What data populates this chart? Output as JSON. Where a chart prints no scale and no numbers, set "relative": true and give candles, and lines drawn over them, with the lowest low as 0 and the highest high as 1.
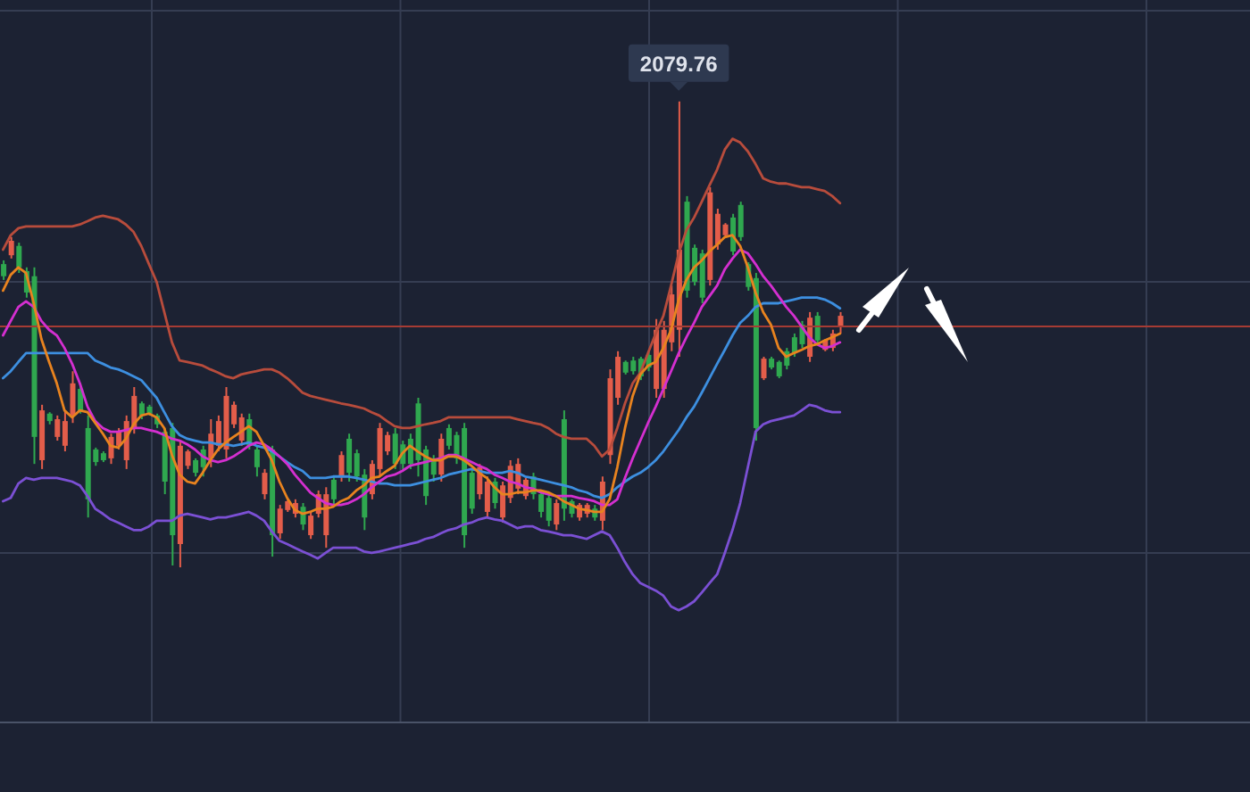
{
  "chart_data": {
    "type": "candlestick",
    "relative": true,
    "grid": true,
    "categories": [
      null,
      null,
      null,
      null,
      null,
      null,
      null,
      null,
      null,
      null,
      null,
      null,
      null,
      null,
      null,
      null,
      null,
      null,
      null,
      null,
      null,
      null,
      null,
      null,
      null,
      null,
      null,
      null,
      null,
      null,
      null,
      null,
      null,
      null,
      null,
      null,
      null,
      null,
      null,
      null,
      null,
      null,
      null,
      null,
      null,
      null,
      null,
      null,
      null,
      null,
      null,
      null,
      null,
      null,
      null,
      null,
      null,
      null,
      null,
      null,
      null,
      null,
      null,
      null,
      null,
      null,
      null,
      null,
      null,
      null,
      null,
      null,
      null,
      null,
      null,
      null,
      null,
      null,
      null,
      null,
      null,
      null,
      null,
      null,
      null,
      null,
      null,
      null,
      null,
      null,
      null,
      null,
      null,
      null,
      null,
      null,
      null,
      null,
      null,
      null,
      null,
      null,
      null,
      null,
      null,
      null,
      null,
      null,
      null,
      null
    ],
    "ohlc": [
      [
        0.625,
        0.659,
        0.617,
        0.651
      ],
      [
        0.701,
        0.709,
        0.663,
        0.67
      ],
      [
        0.644,
        0.697,
        0.632,
        0.69
      ],
      [
        0.59,
        0.644,
        0.579,
        0.636
      ],
      [
        0.28,
        0.644,
        0.222,
        0.625
      ],
      [
        0.337,
        0.349,
        0.211,
        0.23
      ],
      [
        0.314,
        0.333,
        0.307,
        0.33
      ],
      [
        0.318,
        0.326,
        0.272,
        0.28
      ],
      [
        0.314,
        0.337,
        0.249,
        0.261
      ],
      [
        0.395,
        0.421,
        0.31,
        0.326
      ],
      [
        0.337,
        0.395,
        0.33,
        0.383
      ],
      [
        0.146,
        0.326,
        0.107,
        0.299
      ],
      [
        0.226,
        0.257,
        0.218,
        0.253
      ],
      [
        0.23,
        0.249,
        0.226,
        0.245
      ],
      [
        0.28,
        0.287,
        0.222,
        0.234
      ],
      [
        0.291,
        0.299,
        0.253,
        0.261
      ],
      [
        0.314,
        0.326,
        0.211,
        0.23
      ],
      [
        0.368,
        0.387,
        0.287,
        0.299
      ],
      [
        0.326,
        0.356,
        0.318,
        0.352
      ],
      [
        0.33,
        0.349,
        0.326,
        0.345
      ],
      [
        0.307,
        0.33,
        0.299,
        0.326
      ],
      [
        0.184,
        0.299,
        0.157,
        0.291
      ],
      [
        0.069,
        0.31,
        0.004,
        0.299
      ],
      [
        0.261,
        0.272,
        0,
        0.05
      ],
      [
        0.249,
        0.253,
        0.211,
        0.218
      ],
      [
        0.203,
        0.234,
        0.195,
        0.23
      ],
      [
        0.215,
        0.261,
        0.195,
        0.253
      ],
      [
        0.287,
        0.318,
        0.215,
        0.234
      ],
      [
        0.314,
        0.326,
        0.249,
        0.261
      ],
      [
        0.368,
        0.387,
        0.234,
        0.253
      ],
      [
        0.349,
        0.356,
        0.299,
        0.307
      ],
      [
        0.322,
        0.33,
        0.261,
        0.272
      ],
      [
        0.261,
        0.33,
        0.253,
        0.318
      ],
      [
        0.215,
        0.261,
        0.195,
        0.253
      ],
      [
        0.203,
        0.211,
        0.146,
        0.157
      ],
      [
        0.069,
        0.261,
        0.023,
        0.253
      ],
      [
        0.126,
        0.134,
        0.061,
        0.073
      ],
      [
        0.142,
        0.146,
        0.119,
        0.123
      ],
      [
        0.138,
        0.146,
        0.107,
        0.115
      ],
      [
        0.092,
        0.138,
        0.08,
        0.13
      ],
      [
        0.111,
        0.119,
        0.061,
        0.069
      ],
      [
        0.157,
        0.165,
        0.107,
        0.115
      ],
      [
        0.157,
        0.172,
        0.042,
        0.069
      ],
      [
        0.146,
        0.195,
        0.134,
        0.188
      ],
      [
        0.241,
        0.249,
        0.184,
        0.195
      ],
      [
        0.203,
        0.287,
        0.184,
        0.276
      ],
      [
        0.195,
        0.253,
        0.184,
        0.245
      ],
      [
        0.107,
        0.211,
        0.08,
        0.199
      ],
      [
        0.222,
        0.23,
        0.146,
        0.157
      ],
      [
        0.299,
        0.31,
        0.195,
        0.211
      ],
      [
        0.284,
        0.291,
        0.241,
        0.249
      ],
      [
        0.222,
        0.299,
        0.211,
        0.287
      ],
      [
        0.222,
        0.272,
        0.211,
        0.264
      ],
      [
        0.222,
        0.287,
        0.211,
        0.276
      ],
      [
        0.23,
        0.364,
        0.195,
        0.352
      ],
      [
        0.153,
        0.261,
        0.134,
        0.253
      ],
      [
        0.199,
        0.241,
        0.184,
        0.234
      ],
      [
        0.276,
        0.287,
        0.184,
        0.199
      ],
      [
        0.261,
        0.307,
        0.253,
        0.299
      ],
      [
        0.234,
        0.291,
        0.222,
        0.284
      ],
      [
        0.069,
        0.31,
        0.042,
        0.299
      ],
      [
        0.126,
        0.211,
        0.115,
        0.203
      ],
      [
        0.215,
        0.222,
        0.146,
        0.157
      ],
      [
        0.184,
        0.195,
        0.107,
        0.119
      ],
      [
        0.138,
        0.192,
        0.126,
        0.184
      ],
      [
        0.176,
        0.184,
        0.096,
        0.107
      ],
      [
        0.218,
        0.23,
        0.138,
        0.149
      ],
      [
        0.222,
        0.234,
        0.157,
        0.169
      ],
      [
        0.188,
        0.192,
        0.146,
        0.153
      ],
      [
        0.157,
        0.203,
        0.146,
        0.195
      ],
      [
        0.119,
        0.165,
        0.107,
        0.157
      ],
      [
        0.1,
        0.157,
        0.088,
        0.149
      ],
      [
        0.138,
        0.146,
        0.08,
        0.092
      ],
      [
        0.126,
        0.337,
        0.1,
        0.318
      ],
      [
        0.115,
        0.146,
        0.107,
        0.142
      ],
      [
        0.134,
        0.138,
        0.1,
        0.107
      ],
      [
        0.134,
        0.138,
        0.107,
        0.115
      ],
      [
        0.107,
        0.134,
        0.1,
        0.126
      ],
      [
        0.184,
        0.195,
        0.08,
        0.1
      ],
      [
        0.406,
        0.425,
        0.222,
        0.241
      ],
      [
        0.452,
        0.464,
        0.349,
        0.364
      ],
      [
        0.418,
        0.444,
        0.414,
        0.441
      ],
      [
        0.421,
        0.452,
        0.414,
        0.444
      ],
      [
        0.41,
        0.452,
        0.402,
        0.448
      ],
      [
        0.429,
        0.464,
        0.421,
        0.456
      ],
      [
        0.51,
        0.533,
        0.364,
        0.383
      ],
      [
        0.51,
        0.529,
        0.364,
        0.383
      ],
      [
        0.586,
        0.605,
        0.464,
        0.483
      ],
      [
        0.682,
        1,
        0.452,
        0.51
      ],
      [
        0.594,
        0.797,
        0.579,
        0.785
      ],
      [
        0.613,
        0.693,
        0.605,
        0.686
      ],
      [
        0.579,
        0.682,
        0.567,
        0.674
      ],
      [
        0.805,
        0.816,
        0.605,
        0.617
      ],
      [
        0.759,
        0.77,
        0.682,
        0.693
      ],
      [
        0.736,
        0.739,
        0.709,
        0.713
      ],
      [
        0.678,
        0.759,
        0.67,
        0.751
      ],
      [
        0.709,
        0.785,
        0.701,
        0.778
      ],
      [
        0.602,
        0.655,
        0.594,
        0.651
      ],
      [
        0.299,
        0.632,
        0.272,
        0.621
      ],
      [
        0.448,
        0.452,
        0.402,
        0.406
      ],
      [
        0.429,
        0.452,
        0.425,
        0.448
      ],
      [
        0.41,
        0.444,
        0.406,
        0.441
      ],
      [
        0.433,
        0.471,
        0.425,
        0.464
      ],
      [
        0.46,
        0.502,
        0.452,
        0.494
      ],
      [
        0.479,
        0.529,
        0.471,
        0.521
      ],
      [
        0.536,
        0.548,
        0.441,
        0.452
      ],
      [
        0.487,
        0.548,
        0.479,
        0.54
      ],
      [
        0.487,
        0.49,
        0.464,
        0.467
      ],
      [
        0.502,
        0.51,
        0.464,
        0.471
      ],
      [
        0.54,
        0.548,
        0.502,
        0.517
      ]
    ],
    "colors": [
      "#2fa84f",
      "#e35d4a",
      "#2fa84f",
      "#2fa84f",
      "#2fa84f",
      "#e35d4a",
      "#2fa84f",
      "#e35d4a",
      "#e35d4a",
      "#e35d4a",
      "#2fa84f",
      "#2fa84f",
      "#2fa84f",
      "#2fa84f",
      "#e35d4a",
      "#e35d4a",
      "#e35d4a",
      "#e35d4a",
      "#2fa84f",
      "#2fa84f",
      "#2fa84f",
      "#2fa84f",
      "#2fa84f",
      "#e35d4a",
      "#e35d4a",
      "#2fa84f",
      "#2fa84f",
      "#e35d4a",
      "#e35d4a",
      "#e35d4a",
      "#e35d4a",
      "#e35d4a",
      "#2fa84f",
      "#2fa84f",
      "#e35d4a",
      "#2fa84f",
      "#e35d4a",
      "#e35d4a",
      "#e35d4a",
      "#2fa84f",
      "#e35d4a",
      "#e35d4a",
      "#e35d4a",
      "#2fa84f",
      "#e35d4a",
      "#2fa84f",
      "#2fa84f",
      "#2fa84f",
      "#e35d4a",
      "#e35d4a",
      "#e35d4a",
      "#2fa84f",
      "#2fa84f",
      "#2fa84f",
      "#2fa84f",
      "#2fa84f",
      "#2fa84f",
      "#e35d4a",
      "#2fa84f",
      "#2fa84f",
      "#2fa84f",
      "#2fa84f",
      "#e35d4a",
      "#e35d4a",
      "#2fa84f",
      "#e35d4a",
      "#e35d4a",
      "#e35d4a",
      "#e35d4a",
      "#2fa84f",
      "#2fa84f",
      "#2fa84f",
      "#e35d4a",
      "#2fa84f",
      "#2fa84f",
      "#e35d4a",
      "#e35d4a",
      "#2fa84f",
      "#e35d4a",
      "#e35d4a",
      "#e35d4a",
      "#2fa84f",
      "#2fa84f",
      "#2fa84f",
      "#2fa84f",
      "#e35d4a",
      "#e35d4a",
      "#e35d4a",
      "#e35d4a",
      "#2fa84f",
      "#2fa84f",
      "#2fa84f",
      "#e35d4a",
      "#e35d4a",
      "#e35d4a",
      "#2fa84f",
      "#2fa84f",
      "#2fa84f",
      "#2fa84f",
      "#e35d4a",
      "#2fa84f",
      "#2fa84f",
      "#2fa84f",
      "#2fa84f",
      "#2fa84f",
      "#e35d4a",
      "#2fa84f",
      "#e35d4a",
      "#e35d4a",
      "#e35d4a"
    ],
    "series": [
      {
        "type": "line",
        "color": "#b84c3c",
        "values": [
          0.682,
          0.713,
          0.728,
          0.732,
          0.732,
          0.732,
          0.732,
          0.732,
          0.732,
          0.732,
          0.736,
          0.743,
          0.751,
          0.755,
          0.751,
          0.747,
          0.736,
          0.72,
          0.69,
          0.651,
          0.613,
          0.548,
          0.483,
          0.444,
          0.441,
          0.437,
          0.433,
          0.425,
          0.418,
          0.41,
          0.406,
          0.414,
          0.418,
          0.421,
          0.425,
          0.425,
          0.418,
          0.406,
          0.391,
          0.375,
          0.368,
          0.364,
          0.36,
          0.356,
          0.352,
          0.349,
          0.345,
          0.341,
          0.333,
          0.326,
          0.314,
          0.303,
          0.299,
          0.299,
          0.303,
          0.307,
          0.31,
          0.314,
          0.322,
          0.322,
          0.322,
          0.322,
          0.322,
          0.322,
          0.322,
          0.322,
          0.322,
          0.318,
          0.314,
          0.31,
          0.307,
          0.299,
          0.287,
          0.28,
          0.276,
          0.276,
          0.276,
          0.261,
          0.238,
          0.253,
          0.299,
          0.352,
          0.395,
          0.418,
          0.46,
          0.502,
          0.54,
          0.605,
          0.674,
          0.724,
          0.751,
          0.785,
          0.82,
          0.854,
          0.897,
          0.92,
          0.912,
          0.893,
          0.866,
          0.835,
          0.828,
          0.824,
          0.824,
          0.82,
          0.816,
          0.816,
          0.812,
          0.808,
          0.797,
          0.782
        ]
      },
      {
        "type": "line",
        "color": "#3d8fe0",
        "values": [
          0.406,
          0.421,
          0.441,
          0.46,
          0.46,
          0.46,
          0.46,
          0.46,
          0.46,
          0.46,
          0.46,
          0.46,
          0.444,
          0.437,
          0.429,
          0.425,
          0.418,
          0.41,
          0.402,
          0.383,
          0.364,
          0.333,
          0.303,
          0.284,
          0.276,
          0.272,
          0.268,
          0.268,
          0.264,
          0.264,
          0.261,
          0.264,
          0.268,
          0.261,
          0.257,
          0.249,
          0.238,
          0.226,
          0.215,
          0.207,
          0.192,
          0.192,
          0.192,
          0.195,
          0.195,
          0.195,
          0.192,
          0.188,
          0.184,
          0.18,
          0.18,
          0.176,
          0.176,
          0.176,
          0.18,
          0.184,
          0.188,
          0.192,
          0.199,
          0.203,
          0.207,
          0.211,
          0.207,
          0.203,
          0.203,
          0.203,
          0.207,
          0.203,
          0.195,
          0.192,
          0.188,
          0.184,
          0.18,
          0.176,
          0.172,
          0.165,
          0.161,
          0.153,
          0.149,
          0.157,
          0.172,
          0.184,
          0.195,
          0.203,
          0.215,
          0.23,
          0.249,
          0.272,
          0.295,
          0.322,
          0.345,
          0.375,
          0.406,
          0.437,
          0.467,
          0.498,
          0.525,
          0.54,
          0.559,
          0.567,
          0.567,
          0.567,
          0.571,
          0.575,
          0.579,
          0.579,
          0.579,
          0.575,
          0.567,
          0.556
        ]
      },
      {
        "type": "line",
        "color": "#7b50d4",
        "values": [
          0.142,
          0.149,
          0.18,
          0.192,
          0.188,
          0.192,
          0.192,
          0.192,
          0.188,
          0.184,
          0.176,
          0.153,
          0.126,
          0.115,
          0.103,
          0.096,
          0.088,
          0.08,
          0.08,
          0.088,
          0.1,
          0.1,
          0.1,
          0.111,
          0.115,
          0.111,
          0.107,
          0.103,
          0.107,
          0.107,
          0.111,
          0.115,
          0.119,
          0.111,
          0.1,
          0.077,
          0.057,
          0.05,
          0.042,
          0.034,
          0.027,
          0.019,
          0.031,
          0.042,
          0.042,
          0.042,
          0.042,
          0.034,
          0.031,
          0.034,
          0.038,
          0.042,
          0.046,
          0.05,
          0.054,
          0.061,
          0.065,
          0.073,
          0.08,
          0.084,
          0.092,
          0.096,
          0.103,
          0.107,
          0.103,
          0.1,
          0.092,
          0.084,
          0.088,
          0.088,
          0.08,
          0.077,
          0.073,
          0.069,
          0.069,
          0.065,
          0.061,
          0.069,
          0.077,
          0.069,
          0.042,
          0.011,
          -0.015,
          -0.034,
          -0.042,
          -0.05,
          -0.061,
          -0.084,
          -0.092,
          -0.084,
          -0.073,
          -0.054,
          -0.034,
          -0.015,
          0.031,
          0.08,
          0.138,
          0.215,
          0.291,
          0.307,
          0.314,
          0.318,
          0.322,
          0.326,
          0.337,
          0.349,
          0.345,
          0.337,
          0.333,
          0.333
        ]
      },
      {
        "type": "line",
        "color": "#d42fd0",
        "values": [
          0.498,
          0.529,
          0.559,
          0.571,
          0.559,
          0.529,
          0.51,
          0.498,
          0.471,
          0.437,
          0.395,
          0.345,
          0.314,
          0.299,
          0.291,
          0.291,
          0.295,
          0.299,
          0.299,
          0.295,
          0.291,
          0.284,
          0.276,
          0.272,
          0.264,
          0.253,
          0.238,
          0.23,
          0.226,
          0.23,
          0.238,
          0.249,
          0.261,
          0.268,
          0.264,
          0.253,
          0.238,
          0.222,
          0.199,
          0.18,
          0.161,
          0.149,
          0.138,
          0.134,
          0.134,
          0.138,
          0.146,
          0.157,
          0.172,
          0.184,
          0.195,
          0.199,
          0.207,
          0.218,
          0.222,
          0.226,
          0.23,
          0.234,
          0.241,
          0.241,
          0.234,
          0.226,
          0.218,
          0.211,
          0.199,
          0.192,
          0.184,
          0.18,
          0.172,
          0.169,
          0.161,
          0.157,
          0.153,
          0.153,
          0.153,
          0.149,
          0.146,
          0.142,
          0.134,
          0.134,
          0.146,
          0.192,
          0.234,
          0.272,
          0.31,
          0.345,
          0.383,
          0.421,
          0.46,
          0.494,
          0.525,
          0.559,
          0.582,
          0.605,
          0.64,
          0.663,
          0.682,
          0.674,
          0.651,
          0.625,
          0.605,
          0.582,
          0.559,
          0.54,
          0.517,
          0.494,
          0.479,
          0.471,
          0.475,
          0.483
        ]
      },
      {
        "type": "line",
        "color": "#e8831f",
        "values": [
          0.594,
          0.628,
          0.644,
          0.632,
          0.567,
          0.49,
          0.441,
          0.395,
          0.337,
          0.322,
          0.337,
          0.333,
          0.31,
          0.287,
          0.261,
          0.257,
          0.276,
          0.307,
          0.326,
          0.33,
          0.322,
          0.299,
          0.241,
          0.199,
          0.184,
          0.18,
          0.203,
          0.23,
          0.253,
          0.268,
          0.28,
          0.291,
          0.303,
          0.291,
          0.261,
          0.23,
          0.184,
          0.149,
          0.123,
          0.115,
          0.119,
          0.126,
          0.126,
          0.13,
          0.142,
          0.149,
          0.165,
          0.176,
          0.192,
          0.195,
          0.207,
          0.218,
          0.245,
          0.261,
          0.249,
          0.238,
          0.23,
          0.23,
          0.238,
          0.238,
          0.23,
          0.218,
          0.203,
          0.192,
          0.172,
          0.157,
          0.157,
          0.161,
          0.161,
          0.165,
          0.165,
          0.161,
          0.153,
          0.142,
          0.134,
          0.126,
          0.123,
          0.119,
          0.119,
          0.146,
          0.215,
          0.299,
          0.368,
          0.414,
          0.433,
          0.441,
          0.471,
          0.51,
          0.575,
          0.617,
          0.644,
          0.659,
          0.678,
          0.693,
          0.709,
          0.713,
          0.69,
          0.644,
          0.59,
          0.548,
          0.521,
          0.471,
          0.452,
          0.46,
          0.467,
          0.475,
          0.479,
          0.487,
          0.494,
          0.502
        ]
      }
    ],
    "ref_lines": [
      {
        "axis": "y",
        "value": 0.517,
        "color": "#a63b34"
      }
    ],
    "annotations": [
      {
        "text": "2079.76",
        "y": 1
      }
    ]
  }
}
